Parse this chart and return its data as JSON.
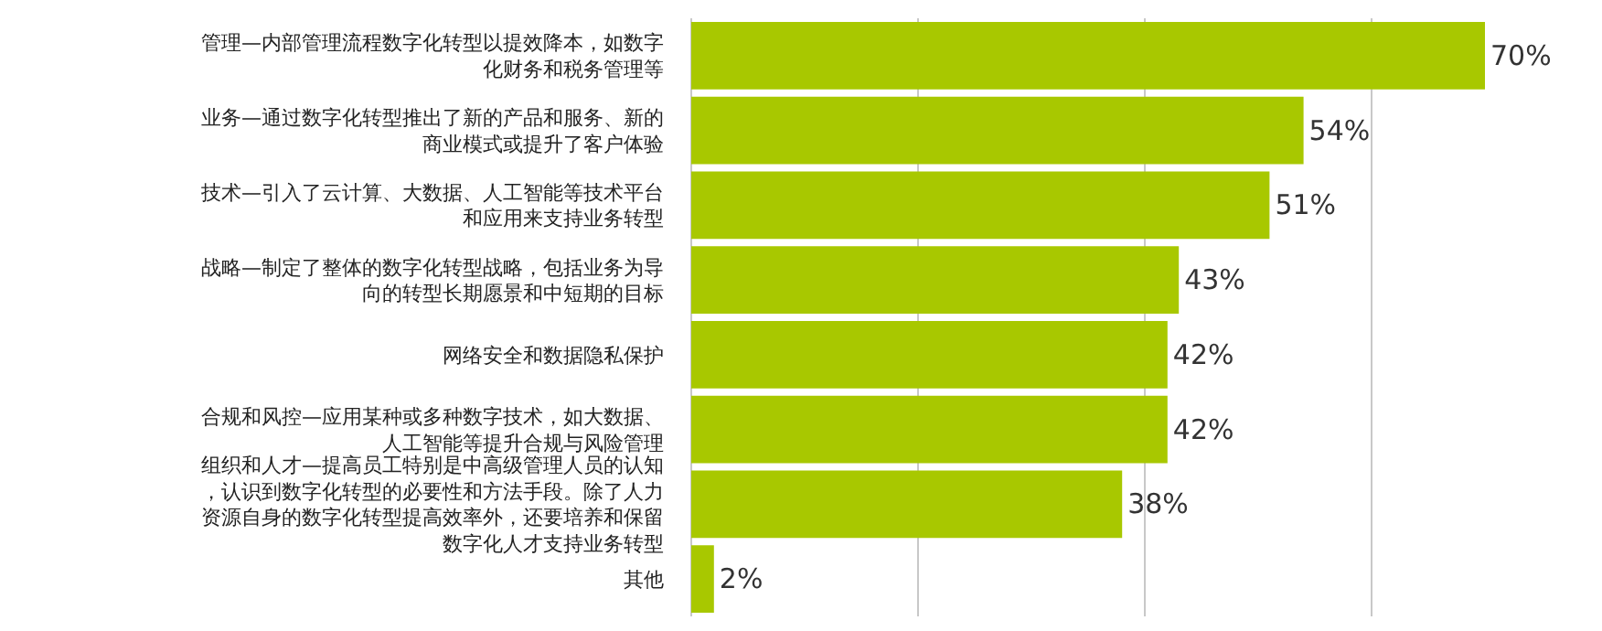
{
  "chart_data": {
    "type": "bar",
    "orientation": "horizontal",
    "categories": [
      "管理—内部管理流程数字化转型以提效降本，如数字化财务和税务管理等",
      "业务—通过数字化转型推出了新的产品和服务、新的商业模式或提升了客户体验",
      "技术—引入了云计算、大数据、人工智能等技术平台和应用来支持业务转型",
      "战略—制定了整体的数字化转型战略，包括业务为导向的转型长期愿景和中短期的目标",
      "网络安全和数据隐私保护",
      "合规和风控—应用某种或多种数字技术，如大数据、人工智能等提升合规与风险管理",
      "组织和人才—提高员工特别是中高级管理人员的认知，认识到数字化转型的必要性和方法手段。除了人力资源自身的数字化转型提高效率外，还要培养和保留数字化人才支持业务转型",
      "其他"
    ],
    "values": [
      70,
      54,
      51,
      43,
      42,
      42,
      38,
      2
    ],
    "value_labels": [
      "70%",
      "54%",
      "51%",
      "43%",
      "42%",
      "42%",
      "38%",
      "2%"
    ],
    "color": "#a8c800",
    "xlim": [
      0,
      80
    ],
    "xticks": [
      {
        "value": 20,
        "label": null
      },
      {
        "value": 40,
        "label": null
      },
      {
        "value": 60,
        "label": null
      }
    ],
    "grid": "x",
    "tick_labels": "y"
  }
}
